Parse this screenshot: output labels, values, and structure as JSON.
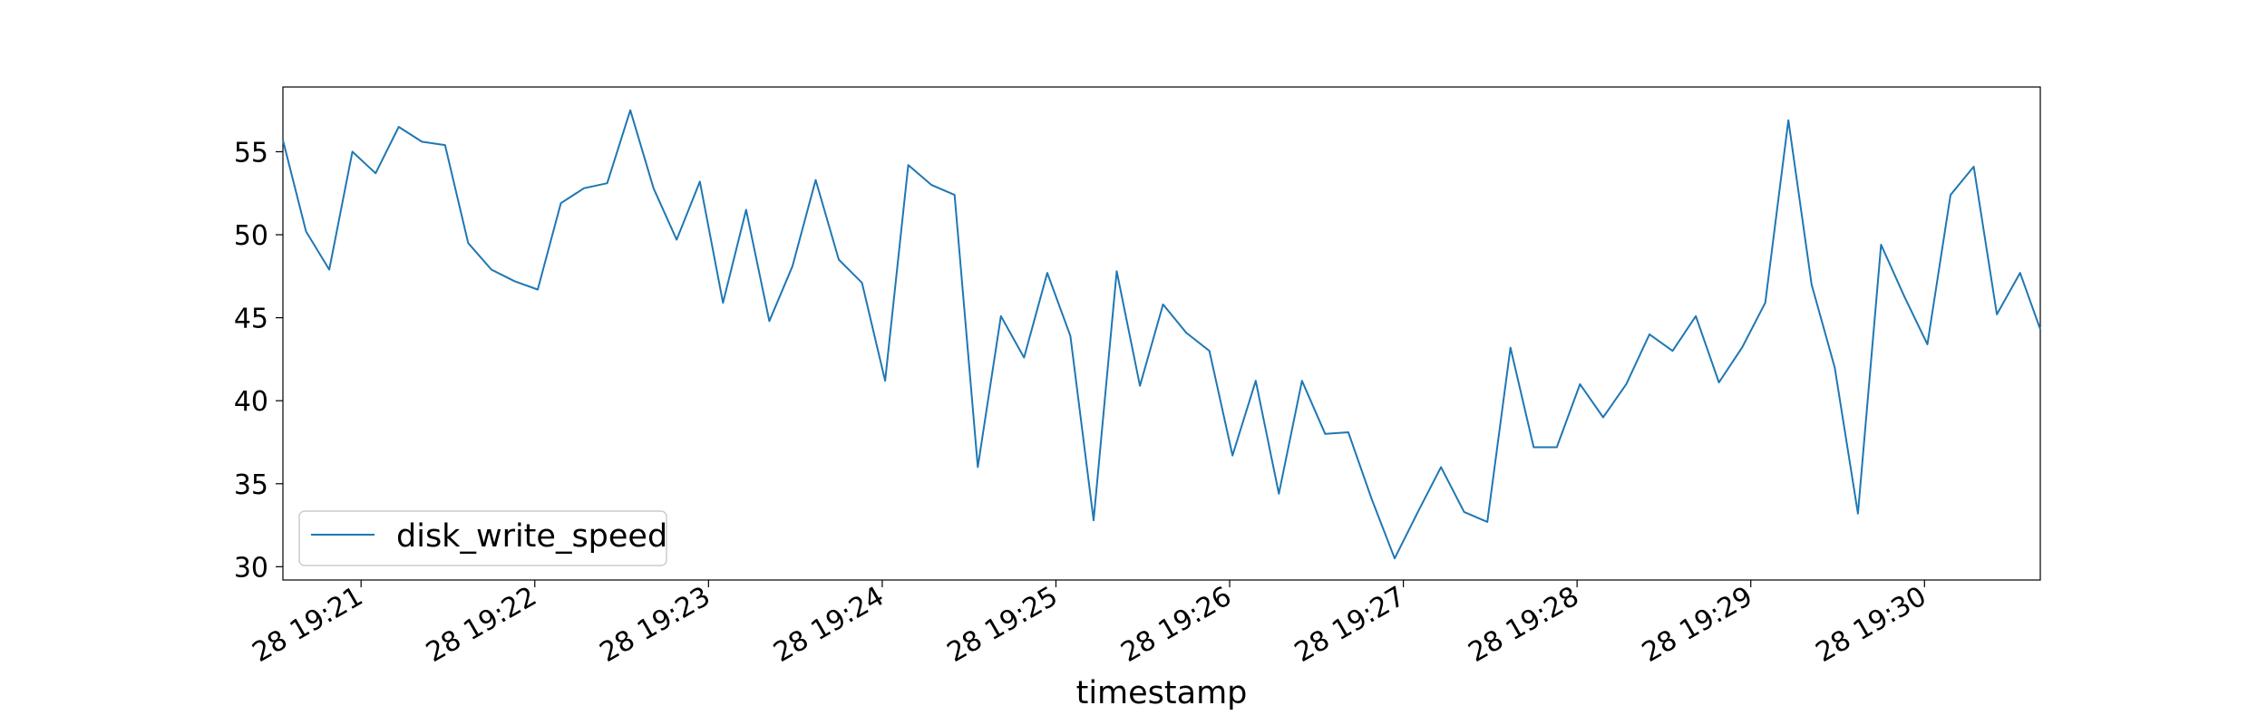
{
  "chart_data": {
    "type": "line",
    "xlabel": "timestamp",
    "ylabel": "",
    "ylim": [
      29.2,
      58.9
    ],
    "x_axis_kind": "datetime",
    "xlim": [
      "28 19:20:33",
      "28 19:30:40"
    ],
    "x_ticks": [
      {
        "t": "28 19:21:00",
        "label": "28 19:21"
      },
      {
        "t": "28 19:22:00",
        "label": "28 19:22"
      },
      {
        "t": "28 19:23:00",
        "label": "28 19:23"
      },
      {
        "t": "28 19:24:00",
        "label": "28 19:24"
      },
      {
        "t": "28 19:25:00",
        "label": "28 19:25"
      },
      {
        "t": "28 19:26:00",
        "label": "28 19:26"
      },
      {
        "t": "28 19:27:00",
        "label": "28 19:27"
      },
      {
        "t": "28 19:28:00",
        "label": "28 19:28"
      },
      {
        "t": "28 19:29:00",
        "label": "28 19:29"
      },
      {
        "t": "28 19:30:00",
        "label": "28 19:30"
      }
    ],
    "y_ticks": [
      30,
      35,
      40,
      45,
      50,
      55
    ],
    "grid": false,
    "legend": {
      "position": "lower-left",
      "entries": [
        "disk_write_speed"
      ]
    },
    "series": [
      {
        "name": "disk_write_speed",
        "color": "#1f77b4",
        "x": [
          "28 19:20:33",
          "28 19:20:41",
          "28 19:20:49",
          "28 19:20:57",
          "28 19:21:05",
          "28 19:21:13",
          "28 19:21:21",
          "28 19:21:29",
          "28 19:21:37",
          "28 19:21:45",
          "28 19:21:53",
          "28 19:22:01",
          "28 19:22:09",
          "28 19:22:17",
          "28 19:22:25",
          "28 19:22:33",
          "28 19:22:41",
          "28 19:22:49",
          "28 19:22:57",
          "28 19:23:05",
          "28 19:23:13",
          "28 19:23:21",
          "28 19:23:29",
          "28 19:23:37",
          "28 19:23:45",
          "28 19:23:53",
          "28 19:24:01",
          "28 19:24:09",
          "28 19:24:17",
          "28 19:24:25",
          "28 19:24:33",
          "28 19:24:41",
          "28 19:24:49",
          "28 19:24:57",
          "28 19:25:05",
          "28 19:25:13",
          "28 19:25:21",
          "28 19:25:29",
          "28 19:25:37",
          "28 19:25:45",
          "28 19:25:53",
          "28 19:26:01",
          "28 19:26:09",
          "28 19:26:17",
          "28 19:26:25",
          "28 19:26:33",
          "28 19:26:41",
          "28 19:26:49",
          "28 19:26:57",
          "28 19:27:05",
          "28 19:27:13",
          "28 19:27:21",
          "28 19:27:29",
          "28 19:27:37",
          "28 19:27:45",
          "28 19:27:53",
          "28 19:28:01",
          "28 19:28:09",
          "28 19:28:17",
          "28 19:28:25",
          "28 19:28:33",
          "28 19:28:41",
          "28 19:28:49",
          "28 19:28:57",
          "28 19:29:05",
          "28 19:29:13",
          "28 19:29:21",
          "28 19:29:29",
          "28 19:29:37",
          "28 19:29:45",
          "28 19:29:53",
          "28 19:30:01",
          "28 19:30:09",
          "28 19:30:17",
          "28 19:30:25",
          "28 19:30:33",
          "28 19:30:40"
        ],
        "values": [
          55.7,
          50.2,
          47.9,
          55.0,
          53.7,
          56.5,
          55.6,
          55.4,
          49.5,
          47.9,
          47.2,
          46.7,
          51.9,
          52.8,
          53.1,
          57.5,
          52.8,
          49.7,
          53.2,
          45.9,
          51.5,
          44.8,
          48.1,
          53.3,
          48.5,
          47.1,
          41.2,
          54.2,
          53.0,
          52.4,
          36.0,
          45.1,
          42.6,
          47.7,
          43.9,
          32.8,
          47.8,
          40.9,
          45.8,
          44.1,
          43.0,
          36.7,
          41.2,
          34.4,
          41.2,
          38.0,
          38.1,
          34.1,
          30.5,
          33.3,
          36.0,
          33.3,
          32.7,
          43.2,
          37.2,
          37.2,
          41.0,
          39.0,
          41.0,
          44.0,
          43.0,
          45.1,
          41.1,
          43.2,
          45.9,
          56.9,
          47.0,
          42.0,
          33.2,
          49.4,
          46.3,
          43.4,
          52.4,
          54.1,
          45.2,
          47.7,
          44.3
        ]
      }
    ]
  }
}
